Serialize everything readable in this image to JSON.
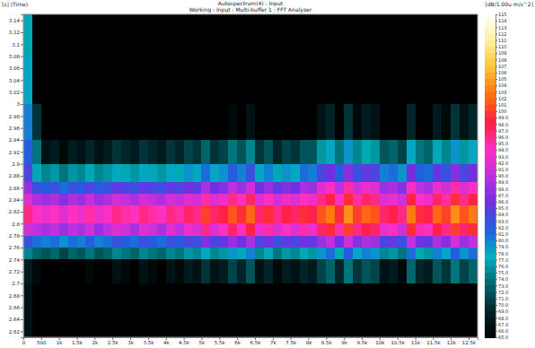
{
  "chart_data": {
    "type": "heatmap",
    "title": "Autospectrum(4) - Input",
    "subtitle": "Working : Input : Multi-buffer 1 : FFT Analyzer",
    "y_label": "[s] (Time)",
    "xlim": [
      0,
      12750
    ],
    "ylim": [
      2.61,
      3.15
    ],
    "xticks": [
      0,
      500,
      {
        "value": 1000,
        "label": "1k"
      },
      {
        "value": 1500,
        "label": "1.5k"
      },
      {
        "value": 2000,
        "label": "2k"
      },
      {
        "value": 2500,
        "label": "2.5k"
      },
      {
        "value": 3000,
        "label": "3k"
      },
      {
        "value": 3500,
        "label": "3.5k"
      },
      {
        "value": 4000,
        "label": "4k"
      },
      {
        "value": 4500,
        "label": "4.5k"
      },
      {
        "value": 5000,
        "label": "5k"
      },
      {
        "value": 5500,
        "label": "5.5k"
      },
      {
        "value": 6000,
        "label": "6k"
      },
      {
        "value": 6500,
        "label": "6.5k"
      },
      {
        "value": 7000,
        "label": "7k"
      },
      {
        "value": 7500,
        "label": "7.5k"
      },
      {
        "value": 8000,
        "label": "8k"
      },
      {
        "value": 8500,
        "label": "8.5k"
      },
      {
        "value": 9000,
        "label": "9k"
      },
      {
        "value": 9500,
        "label": "9.5k"
      },
      {
        "value": 10000,
        "label": "10k"
      },
      {
        "value": 10500,
        "label": "10.5k"
      },
      {
        "value": 11000,
        "label": "11k"
      },
      {
        "value": 11500,
        "label": "11.5k"
      },
      {
        "value": 12000,
        "label": "12k"
      },
      {
        "value": 12500,
        "label": "12.5k"
      }
    ],
    "yticks": [
      2.62,
      2.64,
      2.66,
      2.68,
      2.7,
      2.72,
      2.74,
      2.76,
      2.78,
      2.8,
      2.82,
      2.84,
      2.86,
      2.88,
      2.9,
      2.92,
      2.94,
      2.96,
      2.98,
      3,
      3.02,
      3.04,
      3.06,
      3.08,
      3.1,
      3.12,
      3.14
    ],
    "x_edges": [
      0,
      250,
      500,
      750,
      1000,
      1250,
      1500,
      1750,
      2000,
      2250,
      2500,
      2750,
      3000,
      3250,
      3500,
      3750,
      4000,
      4250,
      4500,
      4750,
      5000,
      5250,
      5500,
      5750,
      6000,
      6250,
      6500,
      6750,
      7000,
      7250,
      7500,
      7750,
      8000,
      8250,
      8500,
      8750,
      9000,
      9250,
      9500,
      9750,
      10000,
      10250,
      10500,
      10750,
      11000,
      11250,
      11500,
      11750,
      12000,
      12250,
      12500,
      12750
    ],
    "y_edges": [
      2.61,
      2.7,
      2.74,
      2.76,
      2.78,
      2.8,
      2.83,
      2.85,
      2.87,
      2.9,
      2.94,
      3.0,
      3.08,
      3.15
    ],
    "z": [
      [
        67,
        62,
        60,
        60,
        59,
        60,
        60,
        61,
        60,
        60,
        61,
        61,
        60,
        61,
        61,
        60,
        61,
        61,
        62,
        61,
        63,
        61,
        62,
        63,
        62,
        64,
        61,
        62,
        60,
        61,
        61,
        62,
        62,
        63,
        64,
        62,
        64,
        63,
        63,
        63,
        61,
        62,
        60,
        63,
        62,
        61,
        63,
        62,
        64,
        62,
        63
      ],
      [
        68,
        66,
        64,
        65,
        63,
        65,
        64,
        66,
        64,
        65,
        67,
        66,
        65,
        67,
        66,
        65,
        67,
        66,
        68,
        67,
        70,
        67,
        68,
        71,
        69,
        72,
        67,
        69,
        66,
        68,
        67,
        69,
        68,
        71,
        73,
        69,
        74,
        70,
        72,
        71,
        67,
        68,
        66,
        73,
        69,
        68,
        72,
        70,
        74,
        71,
        73
      ],
      [
        75,
        73,
        72,
        73,
        71,
        73,
        72,
        74,
        72,
        73,
        75,
        74,
        73,
        75,
        74,
        73,
        75,
        74,
        76,
        75,
        78,
        75,
        76,
        79,
        77,
        80,
        75,
        77,
        74,
        76,
        75,
        77,
        76,
        79,
        81,
        77,
        82,
        78,
        80,
        79,
        75,
        76,
        74,
        81,
        77,
        76,
        80,
        78,
        82,
        79,
        81
      ],
      [
        83,
        81,
        80,
        81,
        79,
        81,
        80,
        82,
        80,
        81,
        83,
        82,
        81,
        83,
        82,
        81,
        83,
        82,
        84,
        83,
        87,
        84,
        85,
        88,
        86,
        89,
        84,
        86,
        83,
        85,
        84,
        86,
        85,
        88,
        90,
        86,
        91,
        87,
        89,
        88,
        84,
        85,
        83,
        90,
        86,
        85,
        89,
        87,
        91,
        88,
        90
      ],
      [
        91,
        90,
        89,
        90,
        88,
        90,
        89,
        91,
        88,
        90,
        92,
        91,
        89,
        92,
        91,
        89,
        92,
        90,
        93,
        92,
        96,
        92,
        94,
        97,
        94,
        98,
        93,
        95,
        92,
        94,
        92,
        95,
        93,
        97,
        99,
        95,
        100,
        96,
        98,
        97,
        93,
        94,
        91,
        99,
        95,
        94,
        98,
        96,
        100,
        97,
        99
      ],
      [
        96,
        94,
        93,
        94,
        92,
        94,
        93,
        95,
        93,
        94,
        96,
        95,
        94,
        96,
        95,
        94,
        96,
        95,
        97,
        96,
        100,
        97,
        98,
        101,
        99,
        102,
        97,
        99,
        96,
        98,
        97,
        99,
        98,
        101,
        103,
        99,
        104,
        100,
        102,
        101,
        97,
        98,
        96,
        103,
        99,
        98,
        102,
        100,
        104,
        101,
        103
      ],
      [
        92,
        89,
        88,
        89,
        87,
        89,
        88,
        90,
        88,
        89,
        91,
        90,
        89,
        91,
        90,
        89,
        91,
        90,
        92,
        91,
        95,
        92,
        93,
        96,
        94,
        97,
        92,
        94,
        91,
        93,
        92,
        94,
        93,
        96,
        98,
        94,
        99,
        95,
        97,
        96,
        92,
        93,
        91,
        98,
        94,
        93,
        97,
        95,
        99,
        96,
        98
      ],
      [
        88,
        83,
        82,
        83,
        81,
        83,
        82,
        84,
        82,
        83,
        85,
        84,
        83,
        85,
        84,
        83,
        85,
        84,
        86,
        85,
        89,
        86,
        87,
        90,
        88,
        91,
        86,
        88,
        85,
        87,
        86,
        89,
        88,
        92,
        94,
        90,
        95,
        91,
        93,
        92,
        88,
        89,
        87,
        94,
        90,
        89,
        93,
        91,
        95,
        92,
        94
      ],
      [
        84,
        77,
        75,
        76,
        74,
        76,
        75,
        77,
        75,
        76,
        78,
        77,
        76,
        78,
        77,
        76,
        78,
        77,
        79,
        78,
        81,
        78,
        79,
        82,
        80,
        83,
        78,
        80,
        77,
        79,
        78,
        81,
        80,
        84,
        86,
        82,
        87,
        83,
        85,
        84,
        80,
        81,
        79,
        86,
        82,
        81,
        85,
        83,
        87,
        84,
        86
      ],
      [
        82,
        74,
        67,
        68,
        66,
        68,
        67,
        69,
        67,
        68,
        70,
        69,
        68,
        70,
        69,
        68,
        70,
        69,
        71,
        70,
        73,
        70,
        71,
        74,
        72,
        75,
        70,
        72,
        69,
        71,
        70,
        72,
        72,
        76,
        78,
        74,
        79,
        75,
        77,
        76,
        72,
        73,
        71,
        78,
        74,
        73,
        77,
        75,
        79,
        76,
        78
      ],
      [
        80,
        70,
        62,
        62,
        61,
        62,
        61,
        62,
        61,
        62,
        63,
        62,
        61,
        63,
        62,
        61,
        63,
        62,
        64,
        63,
        65,
        63,
        64,
        66,
        64,
        67,
        63,
        65,
        62,
        64,
        63,
        65,
        64,
        67,
        69,
        65,
        70,
        66,
        68,
        67,
        63,
        64,
        62,
        69,
        65,
        64,
        68,
        66,
        70,
        67,
        69
      ],
      [
        78,
        64,
        58,
        58,
        57,
        58,
        58,
        58,
        57,
        58,
        58,
        58,
        57,
        58,
        58,
        57,
        58,
        58,
        58,
        58,
        59,
        58,
        58,
        59,
        58,
        59,
        58,
        58,
        57,
        58,
        58,
        58,
        58,
        59,
        60,
        58,
        60,
        59,
        59,
        59,
        58,
        58,
        57,
        59,
        58,
        58,
        59,
        58,
        60,
        59,
        59
      ],
      [
        77,
        60,
        57,
        57,
        56,
        57,
        57,
        57,
        56,
        57,
        57,
        57,
        56,
        57,
        57,
        56,
        57,
        57,
        57,
        57,
        58,
        57,
        57,
        58,
        57,
        58,
        57,
        57,
        56,
        57,
        57,
        57,
        57,
        58,
        58,
        57,
        58,
        58,
        58,
        58,
        57,
        57,
        56,
        58,
        57,
        57,
        58,
        57,
        58,
        58,
        58
      ]
    ],
    "colorbar": {
      "label": "[dB/1.00u m/s^2]",
      "range": [
        65,
        115
      ],
      "ticks": [
        115,
        114,
        113,
        112,
        111,
        110,
        109,
        108,
        107,
        106,
        105,
        104,
        103,
        102,
        101,
        100,
        {
          "value": 99,
          "label": "99.0"
        },
        {
          "value": 98,
          "label": "98.0"
        },
        {
          "value": 97,
          "label": "97.0"
        },
        {
          "value": 96,
          "label": "96.0"
        },
        {
          "value": 95,
          "label": "95.0"
        },
        {
          "value": 94,
          "label": "94.0"
        },
        {
          "value": 93,
          "label": "93.0"
        },
        {
          "value": 92,
          "label": "92.0"
        },
        {
          "value": 91,
          "label": "91.0"
        },
        {
          "value": 90,
          "label": "90.0"
        },
        {
          "value": 89,
          "label": "89.0"
        },
        {
          "value": 88,
          "label": "88.0"
        },
        {
          "value": 87,
          "label": "87.0"
        },
        {
          "value": 86,
          "label": "86.0"
        },
        {
          "value": 85,
          "label": "85.0"
        },
        {
          "value": 84,
          "label": "84.0"
        },
        {
          "value": 83,
          "label": "83.0"
        },
        {
          "value": 82,
          "label": "82.0"
        },
        {
          "value": 81,
          "label": "81.0"
        },
        {
          "value": 80,
          "label": "80.0"
        },
        {
          "value": 79,
          "label": "79.0"
        },
        {
          "value": 78,
          "label": "78.0"
        },
        {
          "value": 77,
          "label": "77.0"
        },
        {
          "value": 76,
          "label": "76.0"
        },
        {
          "value": 75,
          "label": "75.0"
        },
        {
          "value": 74,
          "label": "74.0"
        },
        {
          "value": 73,
          "label": "73.0"
        },
        {
          "value": 72,
          "label": "72.0"
        },
        {
          "value": 71,
          "label": "71.0"
        },
        {
          "value": 70,
          "label": "70.0"
        },
        {
          "value": 69,
          "label": "69.0"
        },
        {
          "value": 68,
          "label": "68.0"
        },
        {
          "value": 67,
          "label": "67.0"
        },
        {
          "value": 66,
          "label": "66.0"
        },
        {
          "value": 65,
          "label": "65.0"
        }
      ]
    }
  }
}
